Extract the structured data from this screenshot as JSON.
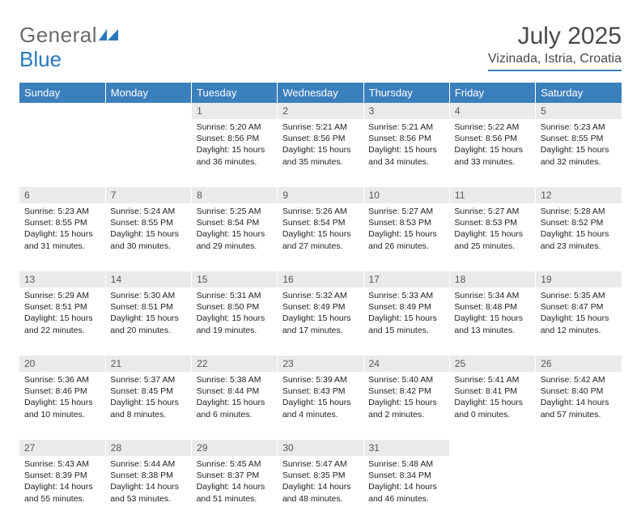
{
  "brand": {
    "part1": "General",
    "part2": "Blue"
  },
  "title": "July 2025",
  "location": "Vizinada, Istria, Croatia",
  "header_bg": "#3b7fbd",
  "header_text": "#ffffff",
  "daynum_bg": "#e9eaec",
  "day_headers": [
    "Sunday",
    "Monday",
    "Tuesday",
    "Wednesday",
    "Thursday",
    "Friday",
    "Saturday"
  ],
  "weeks": [
    {
      "days": [
        null,
        null,
        {
          "n": "1",
          "sr": "5:20 AM",
          "ss": "8:56 PM",
          "dl": "15 hours and 36 minutes."
        },
        {
          "n": "2",
          "sr": "5:21 AM",
          "ss": "8:56 PM",
          "dl": "15 hours and 35 minutes."
        },
        {
          "n": "3",
          "sr": "5:21 AM",
          "ss": "8:56 PM",
          "dl": "15 hours and 34 minutes."
        },
        {
          "n": "4",
          "sr": "5:22 AM",
          "ss": "8:56 PM",
          "dl": "15 hours and 33 minutes."
        },
        {
          "n": "5",
          "sr": "5:23 AM",
          "ss": "8:55 PM",
          "dl": "15 hours and 32 minutes."
        }
      ]
    },
    {
      "days": [
        {
          "n": "6",
          "sr": "5:23 AM",
          "ss": "8:55 PM",
          "dl": "15 hours and 31 minutes."
        },
        {
          "n": "7",
          "sr": "5:24 AM",
          "ss": "8:55 PM",
          "dl": "15 hours and 30 minutes."
        },
        {
          "n": "8",
          "sr": "5:25 AM",
          "ss": "8:54 PM",
          "dl": "15 hours and 29 minutes."
        },
        {
          "n": "9",
          "sr": "5:26 AM",
          "ss": "8:54 PM",
          "dl": "15 hours and 27 minutes."
        },
        {
          "n": "10",
          "sr": "5:27 AM",
          "ss": "8:53 PM",
          "dl": "15 hours and 26 minutes."
        },
        {
          "n": "11",
          "sr": "5:27 AM",
          "ss": "8:53 PM",
          "dl": "15 hours and 25 minutes."
        },
        {
          "n": "12",
          "sr": "5:28 AM",
          "ss": "8:52 PM",
          "dl": "15 hours and 23 minutes."
        }
      ]
    },
    {
      "days": [
        {
          "n": "13",
          "sr": "5:29 AM",
          "ss": "8:51 PM",
          "dl": "15 hours and 22 minutes."
        },
        {
          "n": "14",
          "sr": "5:30 AM",
          "ss": "8:51 PM",
          "dl": "15 hours and 20 minutes."
        },
        {
          "n": "15",
          "sr": "5:31 AM",
          "ss": "8:50 PM",
          "dl": "15 hours and 19 minutes."
        },
        {
          "n": "16",
          "sr": "5:32 AM",
          "ss": "8:49 PM",
          "dl": "15 hours and 17 minutes."
        },
        {
          "n": "17",
          "sr": "5:33 AM",
          "ss": "8:49 PM",
          "dl": "15 hours and 15 minutes."
        },
        {
          "n": "18",
          "sr": "5:34 AM",
          "ss": "8:48 PM",
          "dl": "15 hours and 13 minutes."
        },
        {
          "n": "19",
          "sr": "5:35 AM",
          "ss": "8:47 PM",
          "dl": "15 hours and 12 minutes."
        }
      ]
    },
    {
      "days": [
        {
          "n": "20",
          "sr": "5:36 AM",
          "ss": "8:46 PM",
          "dl": "15 hours and 10 minutes."
        },
        {
          "n": "21",
          "sr": "5:37 AM",
          "ss": "8:45 PM",
          "dl": "15 hours and 8 minutes."
        },
        {
          "n": "22",
          "sr": "5:38 AM",
          "ss": "8:44 PM",
          "dl": "15 hours and 6 minutes."
        },
        {
          "n": "23",
          "sr": "5:39 AM",
          "ss": "8:43 PM",
          "dl": "15 hours and 4 minutes."
        },
        {
          "n": "24",
          "sr": "5:40 AM",
          "ss": "8:42 PM",
          "dl": "15 hours and 2 minutes."
        },
        {
          "n": "25",
          "sr": "5:41 AM",
          "ss": "8:41 PM",
          "dl": "15 hours and 0 minutes."
        },
        {
          "n": "26",
          "sr": "5:42 AM",
          "ss": "8:40 PM",
          "dl": "14 hours and 57 minutes."
        }
      ]
    },
    {
      "days": [
        {
          "n": "27",
          "sr": "5:43 AM",
          "ss": "8:39 PM",
          "dl": "14 hours and 55 minutes."
        },
        {
          "n": "28",
          "sr": "5:44 AM",
          "ss": "8:38 PM",
          "dl": "14 hours and 53 minutes."
        },
        {
          "n": "29",
          "sr": "5:45 AM",
          "ss": "8:37 PM",
          "dl": "14 hours and 51 minutes."
        },
        {
          "n": "30",
          "sr": "5:47 AM",
          "ss": "8:35 PM",
          "dl": "14 hours and 48 minutes."
        },
        {
          "n": "31",
          "sr": "5:48 AM",
          "ss": "8:34 PM",
          "dl": "14 hours and 46 minutes."
        },
        null,
        null
      ]
    }
  ],
  "labels": {
    "sunrise": "Sunrise:",
    "sunset": "Sunset:",
    "daylight": "Daylight:"
  }
}
